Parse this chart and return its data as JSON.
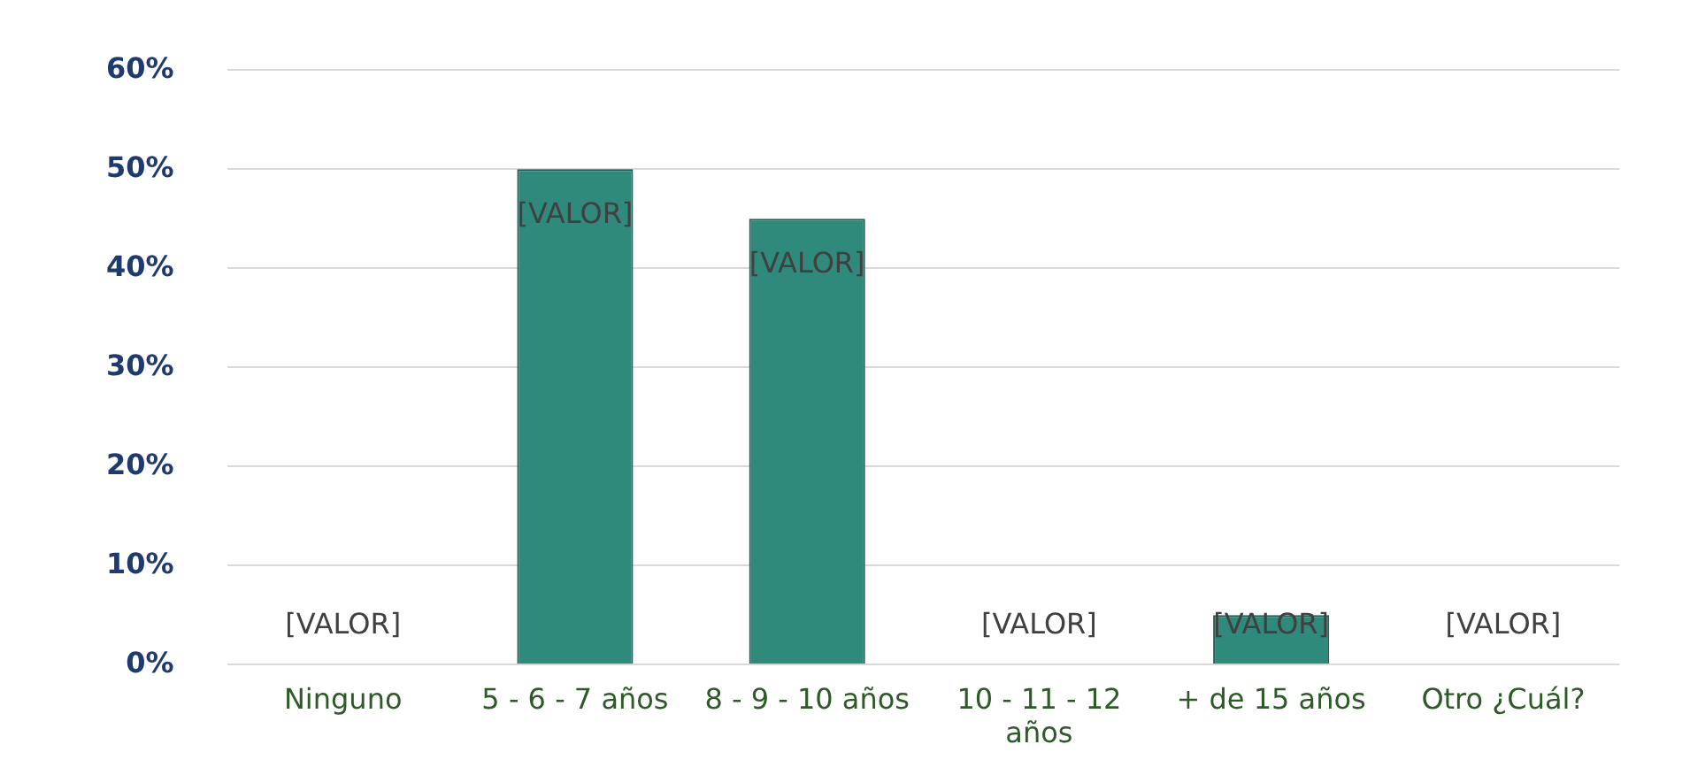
{
  "chart_data": {
    "type": "bar",
    "categories": [
      "Ninguno",
      "5 - 6 - 7 años",
      "8 - 9 - 10 años",
      "10 - 11 - 12 años",
      "+ de 15 años",
      "Otro ¿Cuál?"
    ],
    "values": [
      0,
      50,
      45,
      0,
      5,
      0
    ],
    "color": "#2f8a7c",
    "value_labels": [
      "[VALOR]",
      "[VALOR]",
      "[VALOR]",
      "[VALOR]",
      "[VALOR]",
      "[VALOR]"
    ],
    "ylim": [
      0,
      60
    ],
    "yticks": [
      {
        "value": 0,
        "label": "0%"
      },
      {
        "value": 10,
        "label": "10%"
      },
      {
        "value": 20,
        "label": "20%"
      },
      {
        "value": 30,
        "label": "30%"
      },
      {
        "value": 40,
        "label": "40%"
      },
      {
        "value": 50,
        "label": "50%"
      },
      {
        "value": 60,
        "label": "60%"
      }
    ],
    "grid": "y",
    "legend": false
  }
}
